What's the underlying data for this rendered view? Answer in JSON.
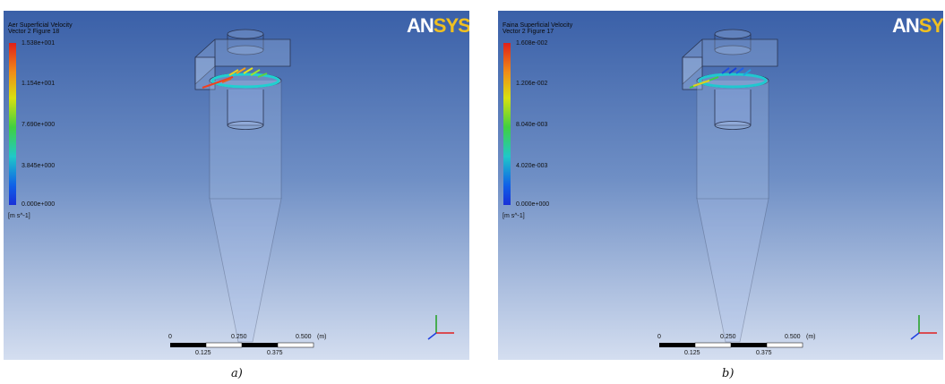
{
  "panels": [
    {
      "title_line1": "Aer Superficial Velocity",
      "title_line2": "Vector 2 Figure 18",
      "legend_values": [
        "1.538e+001",
        "1.154e+001",
        "7.690e+000",
        "3.845e+000",
        "0.000e+000"
      ],
      "unit": "[m s^-1]",
      "logo_an": "AN",
      "logo_sys": "SYS",
      "scale_top": [
        "0",
        "0.250",
        "0.500",
        "(m)"
      ],
      "scale_bottom": [
        "0.125",
        "0.375"
      ],
      "caption": "a)"
    },
    {
      "title_line1": "Faina Superficial Velocity",
      "title_line2": "Vector 2 Figure 17",
      "legend_values": [
        "1.608e-002",
        "1.206e-002",
        "8.040e-003",
        "4.020e-003",
        "0.000e+000"
      ],
      "unit": "[m s^-1]",
      "logo_an": "AN",
      "logo_sys": "SYS",
      "scale_top": [
        "0",
        "0.250",
        "0.500",
        "(m)"
      ],
      "scale_bottom": [
        "0.125",
        "0.375"
      ],
      "caption": "b)"
    }
  ],
  "colors": {
    "background_top": "#3a60a8",
    "background_bottom": "#d4def0",
    "logo_sys": "#f0c020"
  },
  "icons": [
    "triad-axes-icon"
  ]
}
